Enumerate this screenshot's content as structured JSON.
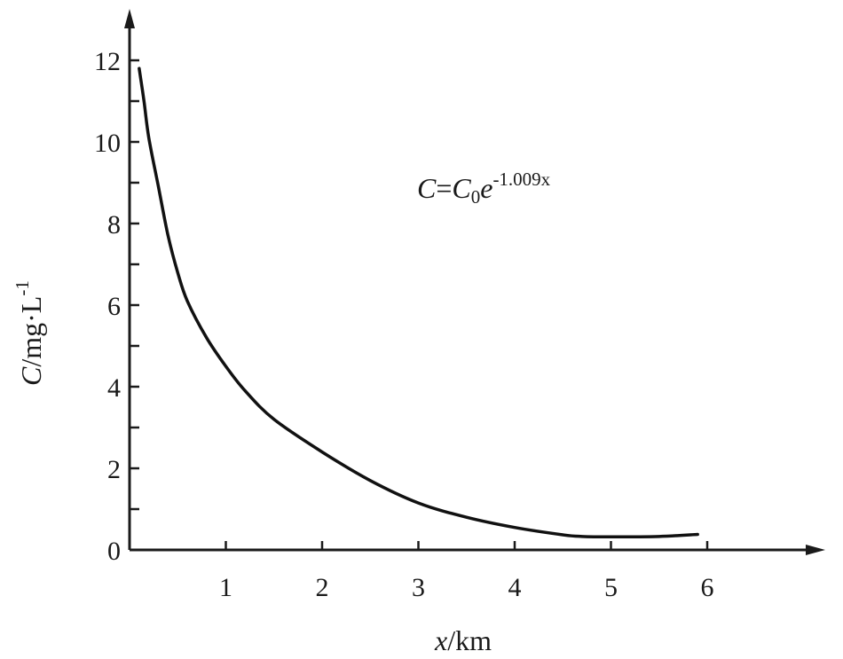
{
  "chart_data": {
    "type": "line",
    "x_axis": {
      "label_var": "x",
      "label_unit": "/km",
      "ticks": [
        1,
        2,
        3,
        4,
        5,
        6
      ],
      "range": [
        0,
        7.3
      ]
    },
    "y_axis": {
      "label_var": "C",
      "label_unit": "/mg·L",
      "label_sup": "-1",
      "ticks": [
        0,
        2,
        4,
        6,
        8,
        10,
        12
      ],
      "minor_ticks": [
        1,
        3,
        5,
        7,
        9,
        11
      ],
      "range": [
        0,
        13
      ]
    },
    "equation": {
      "lhs": "C",
      "eq_sign": "=",
      "coef": "C",
      "coef_sub": "0",
      "base": "e",
      "exponent": "-1.009x"
    },
    "series": [
      {
        "x": [
          0.1,
          0.15,
          0.2,
          0.3,
          0.4,
          0.5,
          0.6,
          0.8,
          1.0,
          1.2,
          1.5,
          2.0,
          2.5,
          3.0,
          3.5,
          4.0,
          4.5,
          4.7,
          5.0,
          5.5,
          5.9
        ],
        "y": [
          11.8,
          11.0,
          10.1,
          8.9,
          7.7,
          6.8,
          6.1,
          5.2,
          4.5,
          3.9,
          3.2,
          2.4,
          1.7,
          1.15,
          0.8,
          0.55,
          0.37,
          0.33,
          0.32,
          0.33,
          0.38
        ]
      }
    ],
    "colors": {
      "axis": "#1a1a1a",
      "line": "#111111"
    },
    "grid": false
  }
}
